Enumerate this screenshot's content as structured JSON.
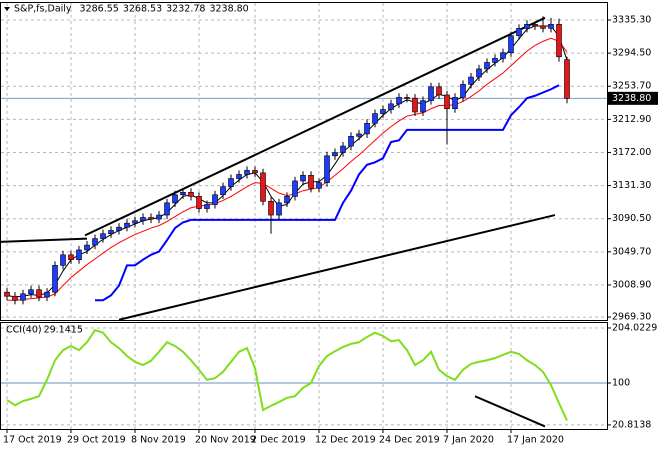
{
  "chart_data": [
    {
      "type": "candlestick",
      "title": "S&P,fs,Daily",
      "header_values": [
        "3286.55",
        "3268.53",
        "3232.78",
        "3238.80"
      ],
      "categories": [
        "17 Oct 2019",
        null,
        null,
        null,
        null,
        null,
        null,
        null,
        "29 Oct 2019",
        null,
        null,
        null,
        null,
        null,
        null,
        null,
        "8 Nov 2019",
        null,
        null,
        null,
        null,
        null,
        null,
        null,
        "20 Nov 2019",
        null,
        null,
        null,
        null,
        null,
        null,
        "2 Dec 2019",
        null,
        null,
        null,
        null,
        null,
        null,
        null,
        "12 Dec 2019",
        null,
        null,
        null,
        null,
        null,
        null,
        null,
        "24 Dec 2019",
        null,
        null,
        null,
        null,
        null,
        null,
        null,
        "7 Jan 2020",
        null,
        null,
        null,
        null,
        null,
        null,
        null,
        "17 Jan 2020",
        null,
        null,
        null,
        null,
        null,
        null,
        null
      ],
      "open": [
        3000,
        2995,
        2990,
        2998,
        3003,
        2994,
        3000,
        3033,
        3046,
        3040,
        3052,
        3058,
        3066,
        3072,
        3076,
        3080,
        3085,
        3088,
        3092,
        3090,
        3095,
        3110,
        3120,
        3123,
        3118,
        3103,
        3108,
        3120,
        3130,
        3140,
        3145,
        3150,
        3147,
        3112,
        3095,
        3110,
        3118,
        3137,
        3144,
        3128,
        3135,
        3168,
        3172,
        3180,
        3192,
        3195,
        3208,
        3220,
        3225,
        3232,
        3240,
        3239,
        3222,
        3236,
        3253,
        3243,
        3226,
        3240,
        3256,
        3265,
        3275,
        3283,
        3288,
        3295,
        3316,
        3325,
        3330,
        3328,
        3325,
        3330,
        3286.55
      ],
      "high": [
        3005,
        3000,
        3003,
        3008,
        3008,
        3005,
        3038,
        3051,
        3051,
        3057,
        3063,
        3071,
        3077,
        3081,
        3085,
        3090,
        3093,
        3097,
        3097,
        3100,
        3115,
        3125,
        3128,
        3128,
        3123,
        3113,
        3125,
        3135,
        3145,
        3150,
        3155,
        3155,
        3152,
        3117,
        3115,
        3123,
        3142,
        3149,
        3149,
        3140,
        3173,
        3177,
        3185,
        3197,
        3200,
        3213,
        3225,
        3230,
        3237,
        3245,
        3244,
        3244,
        3241,
        3258,
        3258,
        3248,
        3245,
        3261,
        3270,
        3280,
        3288,
        3293,
        3300,
        3321,
        3330,
        3335,
        3333,
        3340,
        3338,
        3337,
        3290
      ],
      "low": [
        2990,
        2985,
        2985,
        2993,
        2989,
        2989,
        2995,
        3028,
        3035,
        3035,
        3047,
        3053,
        3061,
        3067,
        3071,
        3075,
        3080,
        3083,
        3085,
        3085,
        3090,
        3105,
        3115,
        3113,
        3098,
        3098,
        3103,
        3115,
        3125,
        3135,
        3140,
        3142,
        3107,
        3072,
        3090,
        3105,
        3113,
        3132,
        3123,
        3123,
        3130,
        3163,
        3167,
        3175,
        3187,
        3190,
        3203,
        3215,
        3220,
        3227,
        3234,
        3217,
        3217,
        3231,
        3238,
        3182,
        3221,
        3235,
        3251,
        3260,
        3270,
        3278,
        3283,
        3290,
        3311,
        3320,
        3323,
        3320,
        3320,
        3284,
        3232.78
      ],
      "close": [
        2995,
        2990,
        2998,
        3003,
        2994,
        3000,
        3033,
        3046,
        3040,
        3052,
        3058,
        3066,
        3072,
        3076,
        3080,
        3085,
        3088,
        3092,
        3090,
        3095,
        3110,
        3120,
        3123,
        3118,
        3103,
        3108,
        3120,
        3130,
        3140,
        3145,
        3150,
        3147,
        3112,
        3095,
        3110,
        3118,
        3137,
        3144,
        3128,
        3135,
        3168,
        3172,
        3180,
        3192,
        3195,
        3208,
        3220,
        3225,
        3232,
        3240,
        3239,
        3222,
        3236,
        3253,
        3243,
        3226,
        3240,
        3256,
        3265,
        3275,
        3283,
        3288,
        3295,
        3316,
        3325,
        3330,
        3328,
        3325,
        3330,
        3290,
        3238.8
      ],
      "up_color": "#1e3cff",
      "down_color": "#e8141c",
      "wick_color": "#000000",
      "overlays": [
        {
          "color": "#000000",
          "values": [
            2996,
            2994,
            2995,
            2997,
            2996,
            2999,
            3009,
            3026,
            3040,
            3046,
            3050,
            3058,
            3065,
            3071,
            3076,
            3080,
            3084,
            3088,
            3090,
            3092,
            3098,
            3108,
            3118,
            3120,
            3115,
            3110,
            3110,
            3119,
            3130,
            3138,
            3145,
            3147,
            3136,
            3118,
            3106,
            3108,
            3122,
            3133,
            3136,
            3136,
            3144,
            3158,
            3173,
            3181,
            3189,
            3198,
            3208,
            3218,
            3226,
            3232,
            3237,
            3234,
            3232,
            3237,
            3244,
            3241,
            3236,
            3241,
            3254,
            3265,
            3274,
            3282,
            3289,
            3300,
            3312,
            3324,
            3328,
            3328,
            3328,
            3315,
            3286
          ]
        },
        {
          "color": "#ff0000",
          "values": [
            2990,
            2990,
            2991,
            2992,
            2993,
            2994,
            2998,
            3008,
            3018,
            3026,
            3034,
            3041,
            3048,
            3055,
            3061,
            3066,
            3071,
            3075,
            3079,
            3082,
            3087,
            3093,
            3099,
            3104,
            3106,
            3107,
            3109,
            3113,
            3118,
            3124,
            3130,
            3135,
            3134,
            3128,
            3122,
            3119,
            3121,
            3125,
            3127,
            3129,
            3136,
            3144,
            3152,
            3161,
            3169,
            3178,
            3187,
            3196,
            3204,
            3211,
            3217,
            3219,
            3221,
            3226,
            3230,
            3230,
            3231,
            3235,
            3241,
            3248,
            3256,
            3263,
            3270,
            3279,
            3288,
            3297,
            3304,
            3309,
            3313,
            3309,
            3296
          ]
        },
        {
          "color": "#0000ff",
          "width": 2,
          "values": [
            null,
            null,
            null,
            null,
            null,
            null,
            null,
            null,
            null,
            null,
            null,
            2990,
            2990,
            2996,
            3008,
            3033,
            3033,
            3040,
            3046,
            3050,
            3064,
            3079,
            3086,
            3089,
            3089,
            3089,
            3089,
            3089,
            3089,
            3089,
            3089,
            3089,
            3089,
            3089,
            3089,
            3089,
            3089,
            3089,
            3089,
            3089,
            3089,
            3089,
            3110,
            3125,
            3145,
            3157,
            3160,
            3165,
            3185,
            3187,
            3200,
            3200,
            3200,
            3200,
            3200,
            3200,
            3200,
            3200,
            3200,
            3200,
            3200,
            3200,
            3200,
            3218,
            3228,
            3239,
            3242,
            3246,
            3250,
            3255,
            null
          ]
        }
      ],
      "trendlines": [
        {
          "x": [
            9.75,
            67.25
          ],
          "y": [
            3070,
            3338
          ]
        },
        {
          "x": [
            14,
            68.5
          ],
          "y": [
            2966,
            3095
          ]
        },
        {
          "x": [
            -0.875,
            10
          ],
          "y": [
            3062,
            3066
          ]
        }
      ],
      "trendline_color": "#000000",
      "last_price": {
        "value": 3238.8,
        "label": "3238.80"
      },
      "last_price_color": "#7f9fc4",
      "ylim": [
        2965.7,
        3357.5
      ],
      "yticks": [
        {
          "value": 2969.3,
          "label": "2969.30"
        },
        {
          "value": 3008.9,
          "label": "3008.90"
        },
        {
          "value": 3049.7,
          "label": "3049.70"
        },
        {
          "value": 3090.5,
          "label": "3090.50"
        },
        {
          "value": 3131.3,
          "label": "3131.30"
        },
        {
          "value": 3172,
          "label": "3172.00"
        },
        {
          "value": 3212.9,
          "label": "3212.90"
        },
        {
          "value": 3253.7,
          "label": "3253.70"
        },
        {
          "value": 3294.5,
          "label": "3294.50"
        },
        {
          "value": 3335.3,
          "label": "3335.30"
        }
      ],
      "grid": true
    },
    {
      "type": "line",
      "label": "CCI(40)",
      "color": "#7fdd1d",
      "values": [
        68,
        58,
        66,
        70,
        75,
        106,
        143,
        162,
        170,
        162,
        177,
        200,
        195,
        177,
        166,
        151,
        140,
        134,
        142,
        159,
        177,
        170,
        159,
        143,
        125,
        106,
        109,
        121,
        140,
        159,
        166,
        128,
        49,
        57,
        64,
        72,
        75,
        91,
        100,
        132,
        151,
        160,
        168,
        174,
        177,
        187,
        195,
        189,
        179,
        181,
        162,
        134,
        143,
        159,
        125,
        113,
        106,
        125,
        136,
        140,
        143,
        147,
        153,
        159,
        155,
        143,
        134,
        121,
        96,
        62,
        29.1415
      ],
      "level": 100,
      "level_color": "#6a8fc0",
      "trendlines": [
        {
          "x": [
            58.5,
            67.25
          ],
          "y": [
            75,
            18
          ]
        }
      ],
      "trendline_color": "#000000",
      "ylim": [
        11.2,
        213.4
      ],
      "yticks": [
        20.8138,
        100,
        204.0229
      ],
      "grid": true
    }
  ]
}
